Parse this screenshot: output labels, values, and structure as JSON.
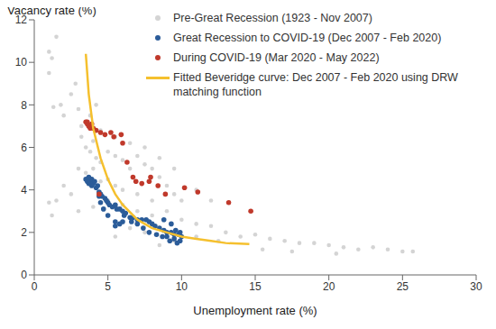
{
  "chart_data": {
    "type": "scatter",
    "x_label": "Unemployment rate (%)",
    "y_label": "Vacancy rate (%)",
    "xlim": [
      0,
      30
    ],
    "ylim": [
      0,
      12
    ],
    "xticks": [
      0,
      5,
      10,
      15,
      20,
      25,
      30
    ],
    "yticks": [
      0,
      2,
      4,
      6,
      8,
      10,
      12
    ],
    "grid": false,
    "legend": "upper right",
    "series": [
      {
        "name": "Pre-Great Recession (1923 - Nov 2007)",
        "color": "#d4d4d4",
        "marker": "circle",
        "type": "scatter",
        "x": [
          1.0,
          1.2,
          1.5,
          1.0,
          1.3,
          1.8,
          2.0,
          2.5,
          3.0,
          3.2,
          3.5,
          3.8,
          4.0,
          4.2,
          4.5,
          5.0,
          5.5,
          6.0,
          6.5,
          7.0,
          7.5,
          8.0,
          8.5,
          9.0,
          9.5,
          10.0,
          5.0,
          5.5,
          6.0,
          7.0,
          8.0,
          3.0,
          3.5,
          4.0,
          4.5,
          2.5,
          2.0,
          1.5,
          3.0,
          4.0,
          5.0,
          6.0,
          7.0,
          8.0,
          9.0,
          10.0,
          11.0,
          12.0,
          13.0,
          14.0,
          15.0,
          16.0,
          17.0,
          18.0,
          19.0,
          20.0,
          21.0,
          22.0,
          23.0,
          24.0,
          25.0,
          25.7,
          15.5,
          17.5,
          20.5,
          11.0,
          12.5,
          6.5,
          7.5,
          5.5,
          9.5,
          8.5,
          1.0,
          1.2,
          4.5,
          5.5,
          6.5,
          7.5,
          8.5,
          9.5,
          11.0,
          12.0,
          2.8,
          3.2,
          3.8,
          4.2
        ],
        "values": [
          10.5,
          10.2,
          11.2,
          9.5,
          7.9,
          8.0,
          7.5,
          8.5,
          7.8,
          6.5,
          6.0,
          5.8,
          6.3,
          5.5,
          5.3,
          5.8,
          5.6,
          5.4,
          5.0,
          5.6,
          5.2,
          5.0,
          4.6,
          4.2,
          3.8,
          3.5,
          4.5,
          4.2,
          4.0,
          3.8,
          3.5,
          5.0,
          4.8,
          5.0,
          4.4,
          3.8,
          4.2,
          3.5,
          3.0,
          3.2,
          3.5,
          3.3,
          3.0,
          2.8,
          3.0,
          2.6,
          2.4,
          2.3,
          2.0,
          1.8,
          1.9,
          1.7,
          1.6,
          1.5,
          1.5,
          1.4,
          1.3,
          1.2,
          1.3,
          1.2,
          1.1,
          1.1,
          1.2,
          1.1,
          1.0,
          1.8,
          1.6,
          2.2,
          2.0,
          1.8,
          1.6,
          1.4,
          3.4,
          2.8,
          6.8,
          6.5,
          6.2,
          6.0,
          5.5,
          5.0,
          4.0,
          3.5,
          9.0,
          7.0,
          7.5,
          8.0
        ]
      },
      {
        "name": "Great Recession to COVID-19 (Dec 2007 - Feb 2020)",
        "color": "#2b5c99",
        "marker": "circle",
        "type": "scatter",
        "x": [
          3.5,
          3.6,
          3.7,
          3.7,
          3.8,
          3.9,
          3.9,
          4.0,
          4.1,
          4.2,
          4.3,
          4.4,
          4.5,
          4.6,
          4.8,
          4.9,
          5.0,
          5.1,
          5.3,
          5.5,
          5.6,
          5.8,
          6.0,
          6.1,
          6.2,
          6.5,
          6.7,
          7.0,
          7.3,
          7.6,
          7.8,
          8.0,
          8.2,
          8.5,
          8.8,
          9.0,
          9.3,
          9.5,
          9.8,
          10.0,
          9.9,
          9.7,
          9.5,
          9.2,
          9.0,
          8.7,
          8.3,
          7.8,
          7.4,
          7.0,
          6.6,
          6.0,
          5.8,
          5.5,
          5.0,
          4.7,
          4.5,
          4.4,
          5.5,
          9.6,
          8.8,
          9.3,
          9.9
        ],
        "values": [
          4.5,
          4.4,
          4.6,
          4.3,
          4.4,
          4.5,
          4.2,
          4.3,
          4.4,
          4.1,
          4.2,
          3.9,
          3.8,
          3.7,
          3.6,
          3.5,
          3.4,
          3.3,
          3.2,
          3.3,
          3.1,
          3.1,
          3.0,
          2.8,
          2.9,
          2.7,
          2.7,
          2.6,
          2.6,
          2.6,
          2.5,
          2.4,
          2.3,
          2.2,
          2.1,
          2.0,
          2.0,
          1.9,
          1.9,
          1.8,
          1.6,
          1.5,
          1.7,
          1.6,
          1.8,
          1.8,
          1.9,
          2.0,
          2.2,
          2.4,
          2.5,
          2.5,
          2.4,
          2.5,
          2.8,
          3.1,
          3.4,
          3.7,
          2.3,
          2.1,
          2.6,
          2.4,
          2.0
        ]
      },
      {
        "name": "During COVID-19 (Mar 2020 - May 2022)",
        "color": "#c0392b",
        "marker": "circle",
        "type": "scatter",
        "x": [
          3.5,
          3.6,
          3.6,
          3.7,
          3.8,
          3.9,
          4.0,
          4.2,
          4.5,
          4.8,
          5.2,
          5.4,
          5.9,
          6.0,
          6.3,
          6.7,
          6.9,
          7.3,
          7.8,
          7.9,
          8.4,
          8.9,
          10.2,
          11.1,
          13.2,
          14.7,
          4.4
        ],
        "values": [
          7.2,
          7.2,
          7.1,
          7.0,
          6.9,
          7.1,
          6.9,
          6.8,
          6.7,
          6.6,
          6.7,
          6.5,
          6.6,
          6.2,
          5.3,
          4.6,
          4.4,
          4.3,
          4.4,
          4.6,
          4.2,
          3.8,
          4.1,
          3.9,
          3.4,
          3.0,
          3.8
        ]
      },
      {
        "name": "Fitted Beveridge curve: Dec 2007 - Feb 2020 using DRW matching function",
        "color": "#f5c02e",
        "type": "line",
        "line_style": "solid",
        "x": [
          3.5,
          3.7,
          4.0,
          4.5,
          5.0,
          5.5,
          6.0,
          7.0,
          8.0,
          9.0,
          10.0,
          11.0,
          12.0,
          13.0,
          14.6
        ],
        "values": [
          10.4,
          8.5,
          6.9,
          5.5,
          4.5,
          3.8,
          3.3,
          2.6,
          2.2,
          2.0,
          1.8,
          1.7,
          1.6,
          1.5,
          1.45
        ]
      }
    ]
  }
}
